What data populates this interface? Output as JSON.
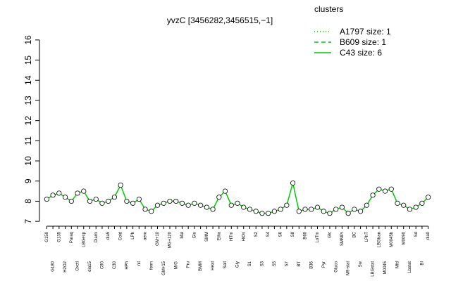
{
  "chart_data": {
    "type": "line",
    "title": "yvzC [3456282,3456515,−1]",
    "categories": [
      "G150",
      "G180",
      "G135",
      "H2O2",
      "Paraq",
      "Oxctl",
      "LBGexp",
      "dia15",
      "Diami",
      "C90",
      "dia5",
      "C30",
      "Cold",
      "HPh",
      "LPh",
      "nit",
      "aero",
      "ferm",
      "GM+10",
      "GM+15",
      "MG+120",
      "M/G",
      "Mal",
      "Fru",
      "Glu",
      "BMM",
      "SMM",
      "Heat",
      "Etha",
      "Salt",
      "HTm",
      "Gly",
      "HiOs",
      "S1",
      "S2",
      "S3",
      "S4",
      "S5",
      "S6",
      "S7",
      "S8",
      "BT",
      "B60",
      "B36",
      "LoTm",
      "Pyr",
      "Glc",
      "Gluco",
      "SMMPr",
      "M9-stat",
      "BC",
      "Sw",
      "LPhT",
      "LBGstat",
      "LBGtran",
      "M0045",
      "M0045b",
      "Mfd",
      "M0090",
      "Lbstat",
      "Sd",
      "BI",
      "dia0"
    ],
    "series": [
      {
        "name": "C43 size: 6",
        "color": "#00cc00",
        "values": [
          8.1,
          8.3,
          8.4,
          8.2,
          8.0,
          8.4,
          8.5,
          8.0,
          8.1,
          7.9,
          8.0,
          8.2,
          8.8,
          8.0,
          7.9,
          8.1,
          7.6,
          7.5,
          7.8,
          7.9,
          8.0,
          8.0,
          7.9,
          7.8,
          7.9,
          7.8,
          7.7,
          7.6,
          8.2,
          8.5,
          7.8,
          7.9,
          7.7,
          7.6,
          7.5,
          7.4,
          7.4,
          7.5,
          7.6,
          7.8,
          8.9,
          7.5,
          7.6,
          7.6,
          7.7,
          7.5,
          7.4,
          7.6,
          7.7,
          7.4,
          7.6,
          7.5,
          7.8,
          8.3,
          8.6,
          8.5,
          8.6,
          7.9,
          7.8,
          7.6,
          7.7,
          7.9,
          8.2
        ]
      }
    ],
    "legend": {
      "title": "clusters",
      "entries": [
        {
          "label": "A1797 size: 1",
          "dash": "1,3"
        },
        {
          "label": "B609 size: 1",
          "dash": "6,4"
        },
        {
          "label": "C43 size: 6",
          "dash": "none"
        }
      ],
      "color": "#00cc00"
    },
    "ylim": [
      6.9,
      16.1
    ],
    "yticks": [
      7,
      8,
      9,
      10,
      11,
      12,
      13,
      14,
      15,
      16
    ]
  }
}
